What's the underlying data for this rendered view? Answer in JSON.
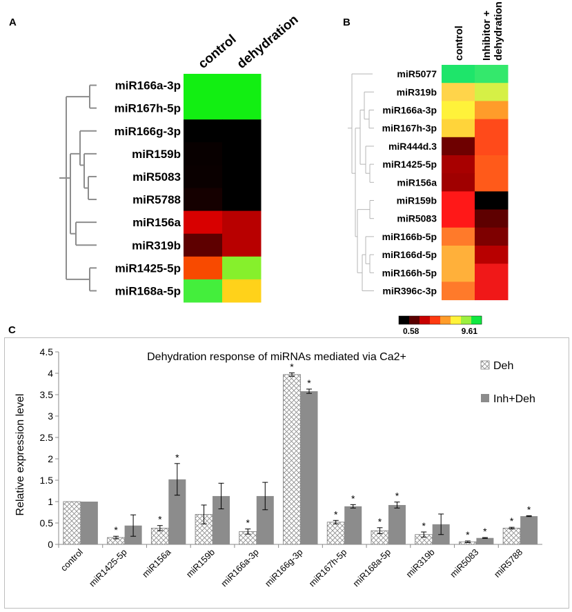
{
  "panels": {
    "a": {
      "letter": "A"
    },
    "b": {
      "letter": "B"
    },
    "c": {
      "letter": "C"
    }
  },
  "chart_data": [
    {
      "type": "heatmap",
      "panel": "A",
      "columns": [
        "control",
        "dehydration"
      ],
      "rows": [
        "miR166a-3p",
        "miR167h-5p",
        "miR166g-3p",
        "miR159b",
        "miR5083",
        "miR5788",
        "miR156a",
        "miR319b",
        "miR1425-5p",
        "miR168a-5p"
      ],
      "colors": [
        [
          "#12ef12",
          "#12ef12"
        ],
        [
          "#12ef12",
          "#12ef12"
        ],
        [
          "#000000",
          "#000000"
        ],
        [
          "#080000",
          "#000000"
        ],
        [
          "#0a0000",
          "#000000"
        ],
        [
          "#150000",
          "#000000"
        ],
        [
          "#d80000",
          "#b80000"
        ],
        [
          "#5e0000",
          "#b80000"
        ],
        [
          "#f84a00",
          "#86f02c"
        ],
        [
          "#44ee3c",
          "#ffd21a"
        ]
      ]
    },
    {
      "type": "heatmap",
      "panel": "B",
      "columns": [
        "control",
        "Inhibitor + dehydration"
      ],
      "rows": [
        "miR5077",
        "miR319b",
        "miR166a-3p",
        "miR167h-3p",
        "miR444d.3",
        "miR1425-5p",
        "miR156a",
        "miR159b",
        "miR5083",
        "miR166b-5p",
        "miR166d-5p",
        "miR166h-5p",
        "miR396c-3p"
      ],
      "colors": [
        [
          "#1ee56a",
          "#34e86c"
        ],
        [
          "#ffd44a",
          "#d6f046"
        ],
        [
          "#fff23a",
          "#ff9c2a"
        ],
        [
          "#ffd43a",
          "#ff4a1a"
        ],
        [
          "#6e0000",
          "#ff4a1a"
        ],
        [
          "#a80000",
          "#ff5a1a"
        ],
        [
          "#a00000",
          "#ff5a1a"
        ],
        [
          "#ff1818",
          "#000000"
        ],
        [
          "#ff1818",
          "#5e0000"
        ],
        [
          "#ff7a2a",
          "#7e0000"
        ],
        [
          "#ffb03a",
          "#b80000"
        ],
        [
          "#ffb03a",
          "#f01818"
        ],
        [
          "#ff7a2a",
          "#f01818"
        ]
      ],
      "legend": {
        "min": "0.58",
        "max": "9.61",
        "colors": [
          "#000000",
          "#5a0000",
          "#c80000",
          "#ff3a10",
          "#ff9c2a",
          "#fff23a",
          "#9cf040",
          "#10e840"
        ]
      }
    },
    {
      "type": "bar",
      "panel": "C",
      "title": "Dehydration response of miRNAs mediated via Ca2+",
      "xlabel": "",
      "ylabel": "Relative expression level",
      "ylim": [
        0,
        4.5
      ],
      "yticks": [
        "0",
        "0.5",
        "1",
        "1.5",
        "2",
        "2.5",
        "3",
        "3.5",
        "4",
        "4.5"
      ],
      "legend_position": "top-right",
      "categories": [
        "control",
        "miR1425-5p",
        "miR156a",
        "miR159b",
        "miR166a-3p",
        "miR166g-3p",
        "miR167h-5p",
        "miR168a-5p",
        "miR319b",
        "miR5083",
        "miR5788"
      ],
      "series": [
        {
          "name": "Deh",
          "values": [
            1.0,
            0.16,
            0.38,
            0.7,
            0.3,
            3.97,
            0.52,
            0.32,
            0.23,
            0.06,
            0.38
          ],
          "errors": [
            0.0,
            0.03,
            0.06,
            0.22,
            0.06,
            0.04,
            0.04,
            0.07,
            0.06,
            0.02,
            0.02
          ],
          "significant": [
            false,
            true,
            true,
            false,
            true,
            true,
            true,
            true,
            true,
            true,
            true
          ],
          "fill": "crosshatch"
        },
        {
          "name": "Inh+Deh",
          "values": [
            1.0,
            0.44,
            1.52,
            1.13,
            1.13,
            3.58,
            0.89,
            0.92,
            0.47,
            0.15,
            0.66
          ],
          "errors": [
            0.0,
            0.25,
            0.37,
            0.3,
            0.32,
            0.05,
            0.04,
            0.07,
            0.24,
            0.01,
            0.01
          ],
          "significant": [
            false,
            false,
            true,
            false,
            false,
            true,
            true,
            true,
            false,
            true,
            true
          ],
          "color": "#8c8c8c"
        }
      ],
      "significance_marker": "*"
    }
  ]
}
